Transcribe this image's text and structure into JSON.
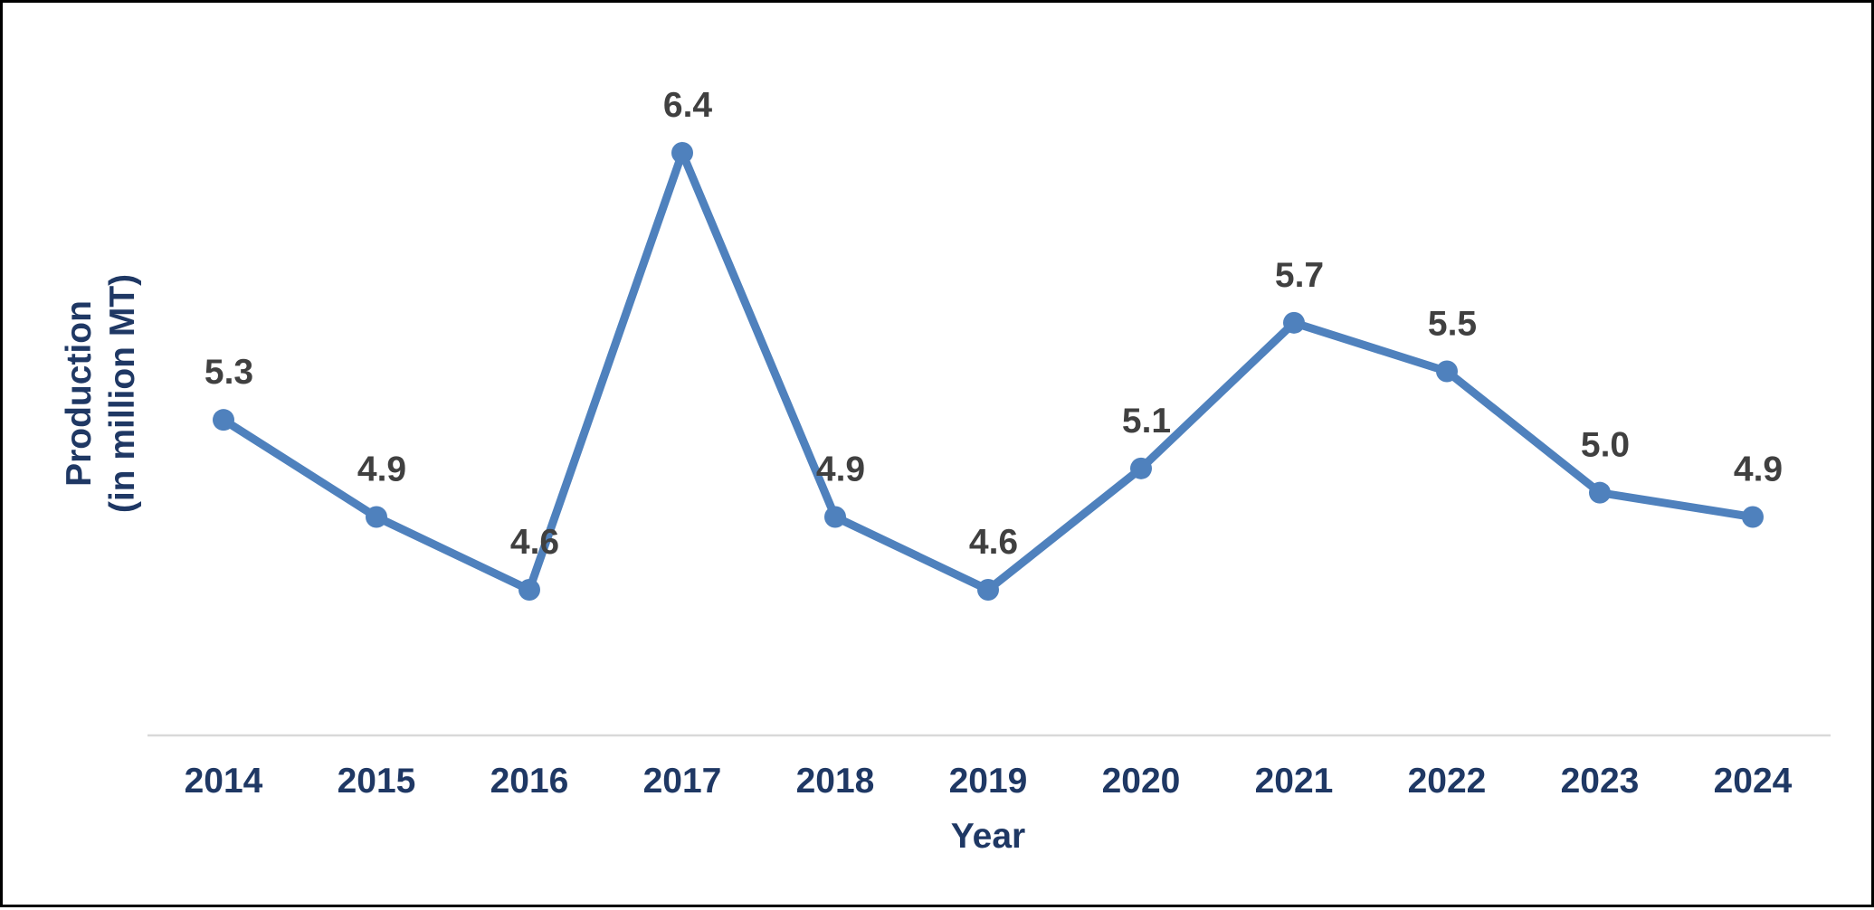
{
  "chart_data": {
    "type": "line",
    "title": "",
    "xlabel": "Year",
    "ylabel_lines": [
      "Production",
      "(in million MT)"
    ],
    "categories": [
      "2014",
      "2015",
      "2016",
      "2017",
      "2018",
      "2019",
      "2020",
      "2021",
      "2022",
      "2023",
      "2024"
    ],
    "series": [
      {
        "values": [
          5.3,
          4.9,
          4.6,
          6.4,
          4.9,
          4.6,
          5.1,
          5.7,
          5.5,
          5.0,
          4.9
        ],
        "data_labels": [
          "5.3",
          "4.9",
          "4.6",
          "6.4",
          "4.9",
          "4.6",
          "5.1",
          "5.7",
          "5.5",
          "5.0",
          "4.9"
        ]
      }
    ],
    "ylim": [
      4.0,
      7.0
    ],
    "legend": "none",
    "grid": false,
    "y_axis_visible": false
  },
  "colors": {
    "line": "#4F81BD",
    "axis_text": "#1F3864",
    "data_label": "#404040",
    "axis_line": "#D9D9D9",
    "border": "#000000"
  }
}
